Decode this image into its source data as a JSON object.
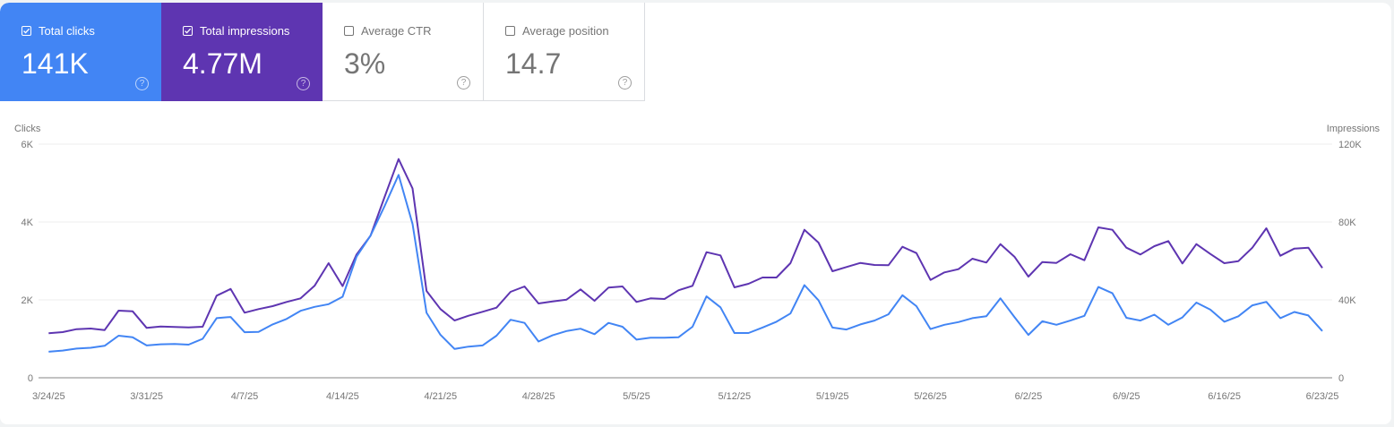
{
  "cards": [
    {
      "label": "Total clicks",
      "value": "141K",
      "checked": true,
      "color": "#4285f4"
    },
    {
      "label": "Total impressions",
      "value": "4.77M",
      "checked": true,
      "color": "#5e35b1"
    },
    {
      "label": "Average CTR",
      "value": "3%",
      "checked": false
    },
    {
      "label": "Average position",
      "value": "14.7",
      "checked": false
    }
  ],
  "chart_data": {
    "type": "line",
    "ylabel": "Clicks",
    "y2label": "Impressions",
    "ylim": [
      0,
      6000
    ],
    "y2lim": [
      0,
      120000
    ],
    "yticks": [
      "0",
      "2K",
      "4K",
      "6K"
    ],
    "y2ticks": [
      "0",
      "40K",
      "80K",
      "120K"
    ],
    "xticks": [
      "3/24/25",
      "3/31/25",
      "4/7/25",
      "4/14/25",
      "4/21/25",
      "4/28/25",
      "5/5/25",
      "5/12/25",
      "5/19/25",
      "5/26/25",
      "6/2/25",
      "6/9/25",
      "6/16/25",
      "6/23/25"
    ],
    "grid": true,
    "x": [
      "3/24/25",
      "3/25/25",
      "3/26/25",
      "3/27/25",
      "3/28/25",
      "3/29/25",
      "3/30/25",
      "3/31/25",
      "4/1/25",
      "4/2/25",
      "4/3/25",
      "4/4/25",
      "4/5/25",
      "4/6/25",
      "4/7/25",
      "4/8/25",
      "4/9/25",
      "4/10/25",
      "4/11/25",
      "4/12/25",
      "4/13/25",
      "4/14/25",
      "4/15/25",
      "4/16/25",
      "4/17/25",
      "4/18/25",
      "4/19/25",
      "4/20/25",
      "4/21/25",
      "4/22/25",
      "4/23/25",
      "4/24/25",
      "4/25/25",
      "4/26/25",
      "4/27/25",
      "4/28/25",
      "4/29/25",
      "4/30/25",
      "5/1/25",
      "5/2/25",
      "5/3/25",
      "5/4/25",
      "5/5/25",
      "5/6/25",
      "5/7/25",
      "5/8/25",
      "5/9/25",
      "5/10/25",
      "5/11/25",
      "5/12/25",
      "5/13/25",
      "5/14/25",
      "5/15/25",
      "5/16/25",
      "5/17/25",
      "5/18/25",
      "5/19/25",
      "5/20/25",
      "5/21/25",
      "5/22/25",
      "5/23/25",
      "5/24/25",
      "5/25/25",
      "5/26/25",
      "5/27/25",
      "5/28/25",
      "5/29/25",
      "5/30/25",
      "5/31/25",
      "6/1/25",
      "6/2/25",
      "6/3/25",
      "6/4/25",
      "6/5/25",
      "6/6/25",
      "6/7/25",
      "6/8/25",
      "6/9/25",
      "6/10/25",
      "6/11/25",
      "6/12/25",
      "6/13/25",
      "6/14/25",
      "6/15/25",
      "6/16/25",
      "6/17/25",
      "6/18/25",
      "6/19/25",
      "6/20/25",
      "6/21/25",
      "6/22/25",
      "6/23/25"
    ],
    "series": [
      {
        "name": "Clicks",
        "axis": "left",
        "color": "#4285f4",
        "values": [
          670,
          700,
          750,
          770,
          820,
          1080,
          1040,
          830,
          860,
          870,
          850,
          1000,
          1530,
          1560,
          1170,
          1180,
          1370,
          1510,
          1720,
          1820,
          1890,
          2080,
          3110,
          3650,
          4410,
          5210,
          3950,
          1670,
          1100,
          740,
          800,
          830,
          1080,
          1490,
          1410,
          930,
          1090,
          1200,
          1260,
          1120,
          1410,
          1310,
          980,
          1030,
          1030,
          1040,
          1310,
          2090,
          1810,
          1150,
          1150,
          1290,
          1440,
          1650,
          2380,
          1990,
          1290,
          1240,
          1370,
          1470,
          1630,
          2120,
          1840,
          1250,
          1360,
          1430,
          1530,
          1580,
          2040,
          1560,
          1100,
          1450,
          1360,
          1470,
          1590,
          2330,
          2170,
          1540,
          1470,
          1620,
          1360,
          1550,
          1930,
          1750,
          1440,
          1580,
          1860,
          1950,
          1530,
          1690,
          1600,
          1200
        ]
      },
      {
        "name": "Impressions",
        "axis": "right",
        "color": "#5e35b1",
        "values": [
          22850,
          23450,
          24970,
          25290,
          24510,
          34480,
          34170,
          25610,
          26350,
          26070,
          25890,
          26210,
          42160,
          45590,
          33430,
          35270,
          36780,
          38950,
          40780,
          47220,
          58850,
          47060,
          63330,
          72970,
          92880,
          112330,
          97190,
          44600,
          35270,
          29430,
          31860,
          33880,
          36000,
          44140,
          46900,
          38160,
          39220,
          40140,
          45380,
          39540,
          46300,
          46900,
          38940,
          40780,
          40460,
          44920,
          47220,
          64510,
          62850,
          46440,
          48280,
          51500,
          51500,
          58850,
          76000,
          69430,
          54720,
          56880,
          58990,
          57930,
          57800,
          67270,
          64050,
          50260,
          54120,
          55780,
          61150,
          59180,
          68650,
          62210,
          51960,
          59450,
          58990,
          63450,
          60370,
          77250,
          76010,
          66810,
          63310,
          67590,
          70210,
          58720,
          68650,
          63590,
          58850,
          59910,
          66810,
          76790,
          62670,
          66350,
          66810,
          56420
        ]
      }
    ]
  }
}
